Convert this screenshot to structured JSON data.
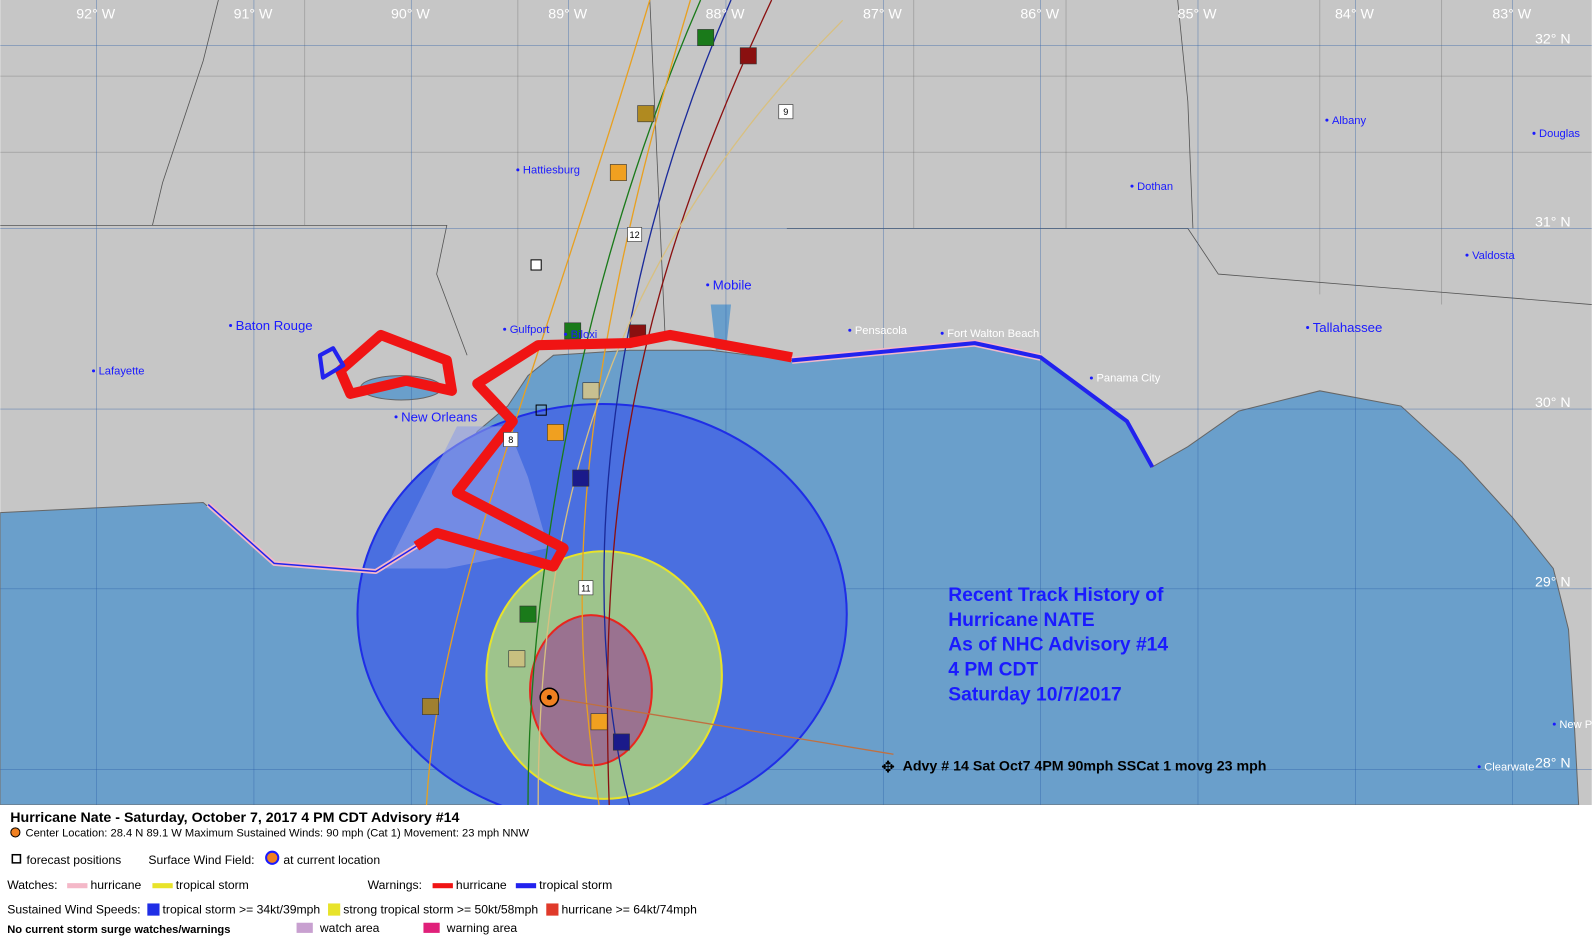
{
  "map": {
    "lon_labels": [
      "92° W",
      "91° W",
      "90° W",
      "89° W",
      "88° W",
      "87° W",
      "86° W",
      "85° W",
      "84° W",
      "83° W"
    ],
    "lat_labels": [
      "32° N",
      "31° N",
      "30° N",
      "29° N",
      "28° N"
    ],
    "cities": [
      "Baton Rouge",
      "Lafayette",
      "New Orleans",
      "Hattiesburg",
      "Gulfport",
      "Biloxi",
      "Mobile",
      "Pensacola",
      "Fort Walton Beach",
      "Panama City",
      "Tallahassee",
      "Dothan",
      "Albany",
      "Valdosta",
      "Douglas",
      "New P",
      "Clearwate"
    ],
    "track_labels": [
      "8",
      "9",
      "11",
      "12"
    ]
  },
  "history": [
    "Recent Track History of",
    "Hurricane NATE",
    "As of NHC Advisory #14",
    "4 PM CDT",
    "Saturday 10/7/2017"
  ],
  "advisory_marker": "Advy # 14 Sat Oct7 4PM  90mph SSCat 1 movg 23 mph",
  "legend": {
    "title": "Hurricane Nate  -  Saturday, October 7, 2017  4 PM CDT   Advisory #14",
    "center": "Center Location: 28.4 N  89.1 W   Maximum Sustained Winds: 90 mph (Cat 1) Movement: 23 mph NNW",
    "forecast_positions": "forecast positions",
    "surface_wind_field": "Surface Wind Field:",
    "at_current_location": "at current location",
    "watches": "Watches:",
    "watch_items": [
      "hurricane",
      "tropical storm"
    ],
    "warnings": "Warnings:",
    "warning_items": [
      "hurricane",
      "tropical storm"
    ],
    "sustained": "Sustained Wind Speeds:",
    "wind_items": [
      "tropical storm >= 34kt/39mph",
      "strong tropical storm >= 50kt/58mph",
      "hurricane >= 64kt/74mph"
    ],
    "surge": "No current storm surge watches/warnings",
    "surge_items": [
      "watch area",
      "warning area"
    ]
  }
}
